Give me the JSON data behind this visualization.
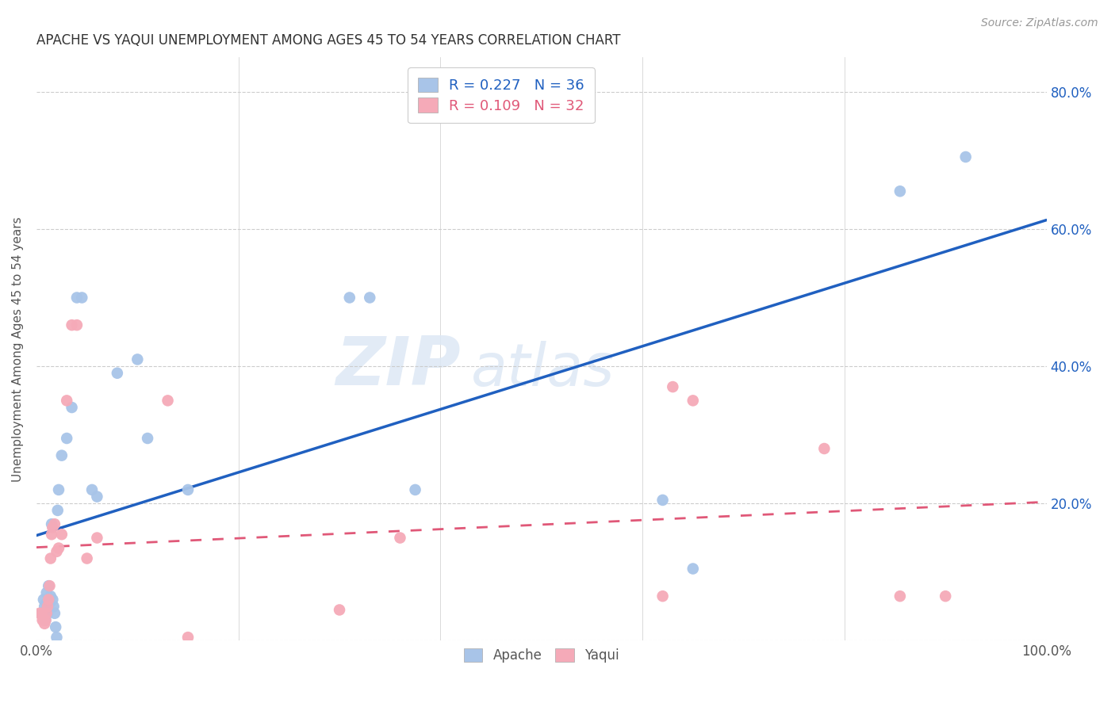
{
  "title": "APACHE VS YAQUI UNEMPLOYMENT AMONG AGES 45 TO 54 YEARS CORRELATION CHART",
  "source": "Source: ZipAtlas.com",
  "ylabel": "Unemployment Among Ages 45 to 54 years",
  "xlim": [
    0,
    1.0
  ],
  "ylim": [
    0,
    0.85
  ],
  "xticks": [
    0.0,
    0.2,
    0.4,
    0.6,
    0.8,
    1.0
  ],
  "xticklabels": [
    "0.0%",
    "",
    "",
    "",
    "",
    "100.0%"
  ],
  "yticks": [
    0.0,
    0.2,
    0.4,
    0.6,
    0.8
  ],
  "yticklabels_right": [
    "",
    "20.0%",
    "40.0%",
    "60.0%",
    "80.0%"
  ],
  "legend_label_apache": "R = 0.227   N = 36",
  "legend_label_yaqui": "R = 0.109   N = 32",
  "apache_color": "#a8c4e8",
  "yaqui_color": "#f5aab8",
  "apache_line_color": "#2060c0",
  "yaqui_line_color": "#e05878",
  "watermark_zip": "ZIP",
  "watermark_atlas": "atlas",
  "apache_x": [
    0.005,
    0.007,
    0.008,
    0.009,
    0.01,
    0.01,
    0.011,
    0.012,
    0.013,
    0.014,
    0.015,
    0.016,
    0.017,
    0.018,
    0.019,
    0.02,
    0.021,
    0.022,
    0.025,
    0.03,
    0.035,
    0.04,
    0.045,
    0.055,
    0.06,
    0.08,
    0.1,
    0.11,
    0.15,
    0.31,
    0.33,
    0.375,
    0.62,
    0.65,
    0.855,
    0.92
  ],
  "apache_y": [
    0.04,
    0.06,
    0.05,
    0.03,
    0.055,
    0.07,
    0.04,
    0.08,
    0.055,
    0.065,
    0.17,
    0.06,
    0.05,
    0.04,
    0.02,
    0.005,
    0.19,
    0.22,
    0.27,
    0.295,
    0.34,
    0.5,
    0.5,
    0.22,
    0.21,
    0.39,
    0.41,
    0.295,
    0.22,
    0.5,
    0.5,
    0.22,
    0.205,
    0.105,
    0.655,
    0.705
  ],
  "yaqui_x": [
    0.003,
    0.005,
    0.006,
    0.007,
    0.008,
    0.009,
    0.01,
    0.011,
    0.012,
    0.013,
    0.014,
    0.015,
    0.016,
    0.018,
    0.02,
    0.022,
    0.025,
    0.03,
    0.035,
    0.04,
    0.05,
    0.06,
    0.13,
    0.15,
    0.3,
    0.36,
    0.62,
    0.63,
    0.65,
    0.78,
    0.855,
    0.9
  ],
  "yaqui_y": [
    0.04,
    0.04,
    0.03,
    0.03,
    0.025,
    0.03,
    0.04,
    0.05,
    0.06,
    0.08,
    0.12,
    0.155,
    0.165,
    0.17,
    0.13,
    0.135,
    0.155,
    0.35,
    0.46,
    0.46,
    0.12,
    0.15,
    0.35,
    0.005,
    0.045,
    0.15,
    0.065,
    0.37,
    0.35,
    0.28,
    0.065,
    0.065
  ]
}
